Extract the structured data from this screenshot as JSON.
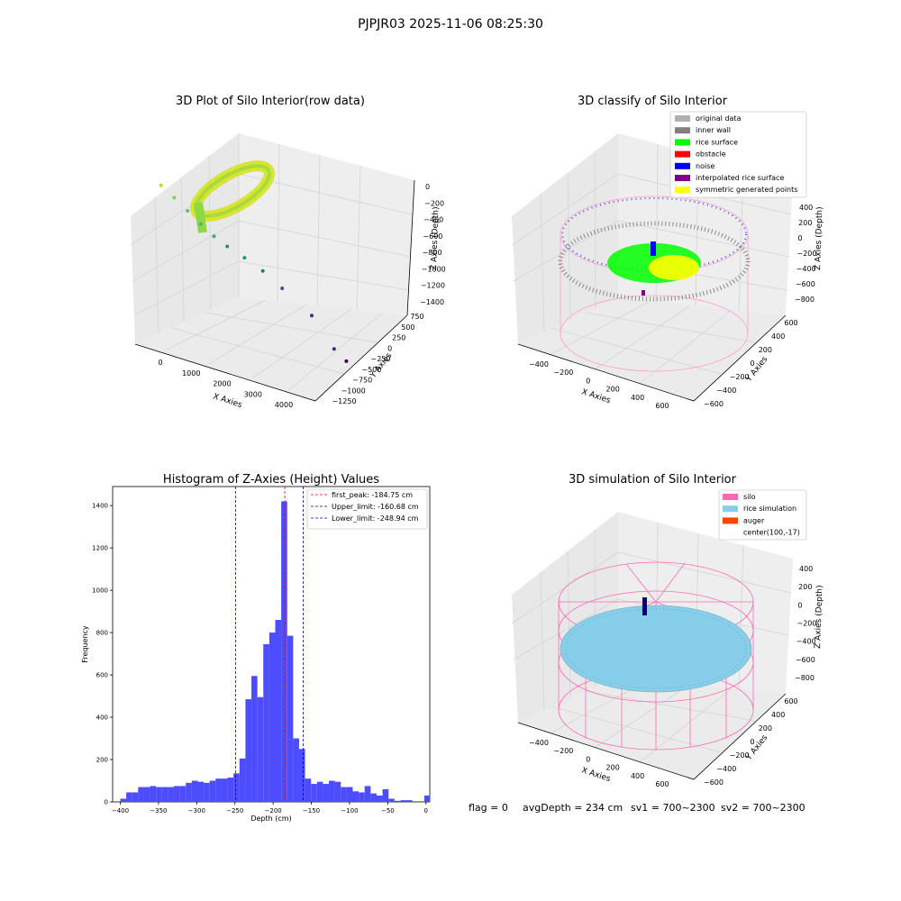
{
  "suptitle": "PJPJR03 2025-11-06 08:25:30",
  "colors": {
    "pane": "#f2f2f2",
    "pane_side": "#e6e6e6",
    "pane_floor": "#ebebeb",
    "grid": "#d0d0d0",
    "axis": "#000000",
    "original_data": "#b0b0b0",
    "inner_wall": "#808080",
    "rice_surface": "#00ff00",
    "obstacle": "#ff0000",
    "noise": "#0000ff",
    "interpolated_rice_surface": "#800080",
    "symmetric_generated_points": "#ffff00",
    "silo": "#ff69b4",
    "rice_simulation": "#87ceeb",
    "auger": "#ff4500",
    "hist_bar": "#4d4dff",
    "first_peak_line": "#ff0000",
    "limit_line": "#0000cc"
  },
  "chart_data": [
    {
      "type": "scatter",
      "subtype": "3d",
      "title": "3D Plot of Silo Interior(row data)",
      "xlabel": "X Axies",
      "ylabel": "Y Axies",
      "zlabel": "Z Axies (Depth)",
      "xticks": [
        "0",
        "1000",
        "2000",
        "3000",
        "4000"
      ],
      "yticks": [
        "750",
        "500",
        "250",
        "0",
        "−250",
        "−500",
        "−750",
        "−1000",
        "−1250"
      ],
      "zticks": [
        "0",
        "−200",
        "−400",
        "−600",
        "−800",
        "−1000",
        "−1200",
        "−1400"
      ],
      "colormap": "viridis",
      "grid": true,
      "points": [
        {
          "x": 300,
          "y": 300,
          "z": -300
        },
        {
          "x": 600,
          "y": 250,
          "z": -420
        },
        {
          "x": 900,
          "y": 200,
          "z": -560
        },
        {
          "x": 1200,
          "y": 150,
          "z": -700
        },
        {
          "x": 1500,
          "y": 100,
          "z": -820
        },
        {
          "x": 1800,
          "y": 50,
          "z": -900
        },
        {
          "x": 2200,
          "y": 0,
          "z": -980
        },
        {
          "x": 2600,
          "y": -100,
          "z": -1050
        },
        {
          "x": 3000,
          "y": -250,
          "z": -1150
        },
        {
          "x": 3600,
          "y": -500,
          "z": -1300
        },
        {
          "x": 3900,
          "y": -1000,
          "z": -1400
        },
        {
          "x": 4100,
          "y": -1200,
          "z": -1400
        }
      ]
    },
    {
      "type": "scatter",
      "subtype": "3d",
      "title": "3D classify of Silo Interior",
      "xlabel": "X Axies",
      "ylabel": "Y Axies",
      "zlabel": "Z Axies (Depth)",
      "xticks": [
        "−400",
        "−200",
        "0",
        "200",
        "400",
        "600"
      ],
      "yticks": [
        "600",
        "400",
        "200",
        "0",
        "−200",
        "−400",
        "−600"
      ],
      "zticks": [
        "400",
        "200",
        "0",
        "−200",
        "−400",
        "−600",
        "−800"
      ],
      "grid": true,
      "legend_position": "top-right",
      "legend": [
        {
          "label": "original data",
          "color_key": "original_data"
        },
        {
          "label": "inner wall",
          "color_key": "inner_wall"
        },
        {
          "label": "rice surface",
          "color_key": "rice_surface"
        },
        {
          "label": "obstacle",
          "color_key": "obstacle"
        },
        {
          "label": "noise",
          "color_key": "noise"
        },
        {
          "label": "interpolated rice surface",
          "color_key": "interpolated_rice_surface"
        },
        {
          "label": "symmetric generated points",
          "color_key": "symmetric_generated_points"
        }
      ]
    },
    {
      "type": "bar",
      "subtype": "histogram",
      "title": "Histogram of Z-Axies (Height) Values",
      "xlabel": "Depth (cm)",
      "ylabel": "Frequency",
      "xlim": [
        -410,
        5
      ],
      "ylim": [
        0,
        1490
      ],
      "xticks": [
        -400,
        -350,
        -300,
        -250,
        -200,
        -150,
        -100,
        -50,
        0
      ],
      "yticks": [
        0,
        200,
        400,
        600,
        800,
        1000,
        1200,
        1400
      ],
      "bin_width": 7.8,
      "bins": [
        {
          "x": -400,
          "count": 15
        },
        {
          "x": -392.2,
          "count": 45
        },
        {
          "x": -384.4,
          "count": 45
        },
        {
          "x": -376.6,
          "count": 70
        },
        {
          "x": -368.8,
          "count": 70
        },
        {
          "x": -361.0,
          "count": 75
        },
        {
          "x": -353.2,
          "count": 70
        },
        {
          "x": -345.4,
          "count": 70
        },
        {
          "x": -337.6,
          "count": 70
        },
        {
          "x": -329.8,
          "count": 75
        },
        {
          "x": -322.0,
          "count": 75
        },
        {
          "x": -314.2,
          "count": 90
        },
        {
          "x": -306.4,
          "count": 100
        },
        {
          "x": -298.6,
          "count": 95
        },
        {
          "x": -290.8,
          "count": 90
        },
        {
          "x": -283.0,
          "count": 100
        },
        {
          "x": -275.2,
          "count": 110
        },
        {
          "x": -267.4,
          "count": 110
        },
        {
          "x": -259.6,
          "count": 115
        },
        {
          "x": -251.8,
          "count": 135
        },
        {
          "x": -244.0,
          "count": 205
        },
        {
          "x": -236.2,
          "count": 485
        },
        {
          "x": -228.4,
          "count": 595
        },
        {
          "x": -220.6,
          "count": 495
        },
        {
          "x": -212.8,
          "count": 745
        },
        {
          "x": -205.0,
          "count": 800
        },
        {
          "x": -197.2,
          "count": 860
        },
        {
          "x": -189.4,
          "count": 1420
        },
        {
          "x": -181.6,
          "count": 785
        },
        {
          "x": -173.8,
          "count": 300
        },
        {
          "x": -166.0,
          "count": 250
        },
        {
          "x": -158.2,
          "count": 110
        },
        {
          "x": -150.4,
          "count": 85
        },
        {
          "x": -142.6,
          "count": 95
        },
        {
          "x": -134.8,
          "count": 85
        },
        {
          "x": -127.0,
          "count": 100
        },
        {
          "x": -119.2,
          "count": 95
        },
        {
          "x": -111.4,
          "count": 70
        },
        {
          "x": -103.6,
          "count": 70
        },
        {
          "x": -95.8,
          "count": 50
        },
        {
          "x": -88.0,
          "count": 45
        },
        {
          "x": -80.2,
          "count": 75
        },
        {
          "x": -72.4,
          "count": 40
        },
        {
          "x": -64.6,
          "count": 30
        },
        {
          "x": -56.8,
          "count": 60
        },
        {
          "x": -49.0,
          "count": 15
        },
        {
          "x": -41.2,
          "count": 5
        },
        {
          "x": -33.4,
          "count": 8
        },
        {
          "x": -25.6,
          "count": 8
        },
        {
          "x": -17.8,
          "count": 0
        },
        {
          "x": -10.0,
          "count": 0
        },
        {
          "x": -2.2,
          "count": 30
        }
      ],
      "vlines": [
        {
          "label": "first_peak: -184.75 cm",
          "x": -184.75,
          "color_key": "first_peak_line"
        },
        {
          "label": "Upper_limit: -160.68 cm",
          "x": -160.68,
          "color_key": "limit_line"
        },
        {
          "label": "Lower_limit: -248.94 cm",
          "x": -248.94,
          "color_key": "limit_line"
        }
      ],
      "legend_position": "top-right"
    },
    {
      "type": "scatter",
      "subtype": "3d",
      "title": "3D simulation of Silo Interior",
      "xlabel": "X Axies",
      "ylabel": "Y Axies",
      "zlabel": "Z Axies (Depth)",
      "xticks": [
        "−400",
        "−200",
        "0",
        "200",
        "400",
        "600"
      ],
      "yticks": [
        "600",
        "400",
        "200",
        "0",
        "−200",
        "−400",
        "−600"
      ],
      "zticks": [
        "400",
        "200",
        "0",
        "−200",
        "−400",
        "−600",
        "−800"
      ],
      "grid": true,
      "legend_position": "top-right",
      "legend": [
        {
          "label": "silo",
          "color_key": "silo"
        },
        {
          "label": "rice simulation",
          "color_key": "rice_simulation"
        },
        {
          "label": "auger",
          "color_key": "auger"
        },
        {
          "label": "center(100,-17)",
          "color_key": ""
        }
      ]
    }
  ],
  "footer": {
    "flag": "flag = 0",
    "avg_depth": "avgDepth = 234 cm",
    "sv1": "sv1 = 700~2300",
    "sv2": "sv2 = 700~2300"
  }
}
